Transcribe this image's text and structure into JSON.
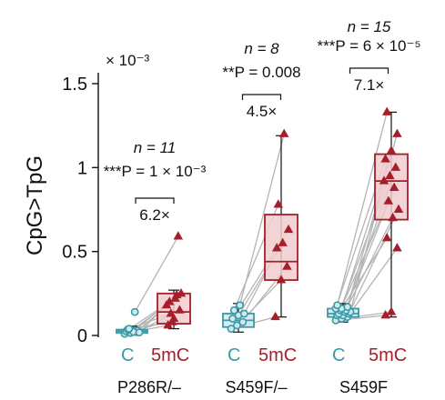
{
  "colors": {
    "c": "#3a9aa6",
    "c_fill": "#d2eaee",
    "mc": "#a51f2a",
    "mc_fill": "#f1cccf",
    "pair_line": "#b4b4b4",
    "axis": "#111111"
  },
  "chart_data": {
    "type": "box-with-paired-points",
    "ylabel": "CpG>TpG",
    "y_multiplier": "× 10⁻³",
    "ylim": [
      0,
      1.58
    ],
    "yticks": [
      0,
      0.5,
      1,
      1.5
    ],
    "ytick_labels": [
      "0",
      "0.5",
      "1",
      "1.5"
    ],
    "condition_labels": [
      "C",
      "5mC"
    ],
    "groups": [
      {
        "name": "P286R/–",
        "n_text": "n = 11",
        "p_text": "***P = 1 × 10⁻³",
        "fold_text": "6.2×",
        "c": {
          "values": [
            0.01,
            0.015,
            0.02,
            0.025,
            0.03,
            0.028,
            0.035,
            0.022,
            0.018,
            0.04,
            0.14
          ],
          "q1": 0.015,
          "median": 0.025,
          "q3": 0.035,
          "whisker_low": 0.005,
          "whisker_high": 0.055
        },
        "mc": {
          "values": [
            0.06,
            0.1,
            0.15,
            0.2,
            0.22,
            0.25,
            0.13,
            0.24,
            0.18,
            0.08,
            0.59
          ],
          "q1": 0.07,
          "median": 0.14,
          "q3": 0.25,
          "whisker_low": 0.04,
          "whisker_high": 0.27
        }
      },
      {
        "name": "S459F/–",
        "n_text": "n = 8",
        "p_text": "**P = 0.008",
        "fold_text": "4.5×",
        "c": {
          "values": [
            0.04,
            0.06,
            0.08,
            0.1,
            0.12,
            0.13,
            0.15,
            0.18
          ],
          "q1": 0.05,
          "median": 0.09,
          "q3": 0.13,
          "whisker_low": 0.02,
          "whisker_high": 0.19
        },
        "mc": {
          "values": [
            0.11,
            0.33,
            0.41,
            0.52,
            0.55,
            0.63,
            0.78,
            1.2
          ],
          "q1": 0.33,
          "median": 0.44,
          "q3": 0.72,
          "whisker_low": 0.11,
          "whisker_high": 1.19
        }
      },
      {
        "name": "S459F",
        "n_text": "n = 15",
        "p_text": "***P = 6 × 10⁻⁵",
        "fold_text": "7.1×",
        "c": {
          "values": [
            0.09,
            0.1,
            0.11,
            0.12,
            0.12,
            0.13,
            0.13,
            0.14,
            0.14,
            0.15,
            0.15,
            0.16,
            0.16,
            0.17,
            0.18
          ],
          "q1": 0.11,
          "median": 0.13,
          "q3": 0.16,
          "whisker_low": 0.08,
          "whisker_high": 0.19
        },
        "mc": {
          "values": [
            0.12,
            0.14,
            0.52,
            0.58,
            0.7,
            0.75,
            0.8,
            0.88,
            0.92,
            0.95,
            1.0,
            1.05,
            1.1,
            1.2,
            1.33
          ],
          "q1": 0.69,
          "median": 0.92,
          "q3": 1.08,
          "whisker_low": 0.11,
          "whisker_high": 1.33
        }
      }
    ]
  }
}
